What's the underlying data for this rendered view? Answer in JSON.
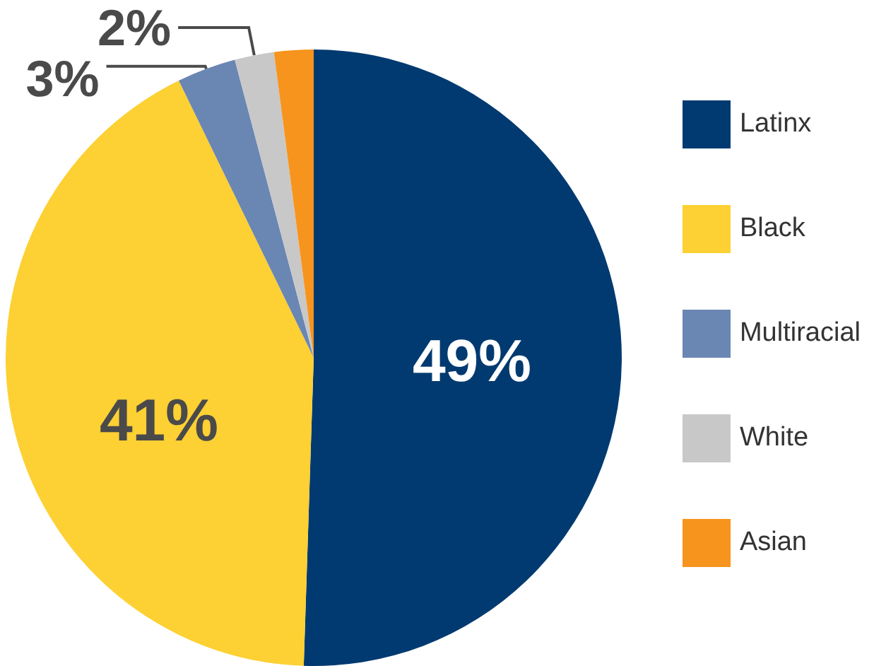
{
  "chart_data": {
    "type": "pie",
    "categories": [
      "Latinx",
      "Black",
      "Multiracial",
      "White",
      "Asian"
    ],
    "values": [
      49,
      41,
      3,
      2,
      2
    ],
    "colors": [
      "#003a70",
      "#fdd033",
      "#6a86b3",
      "#c8c8c8",
      "#f7941d"
    ],
    "value_labels": [
      "49%",
      "41%",
      "3%",
      "2%",
      null
    ],
    "legend": "right"
  }
}
